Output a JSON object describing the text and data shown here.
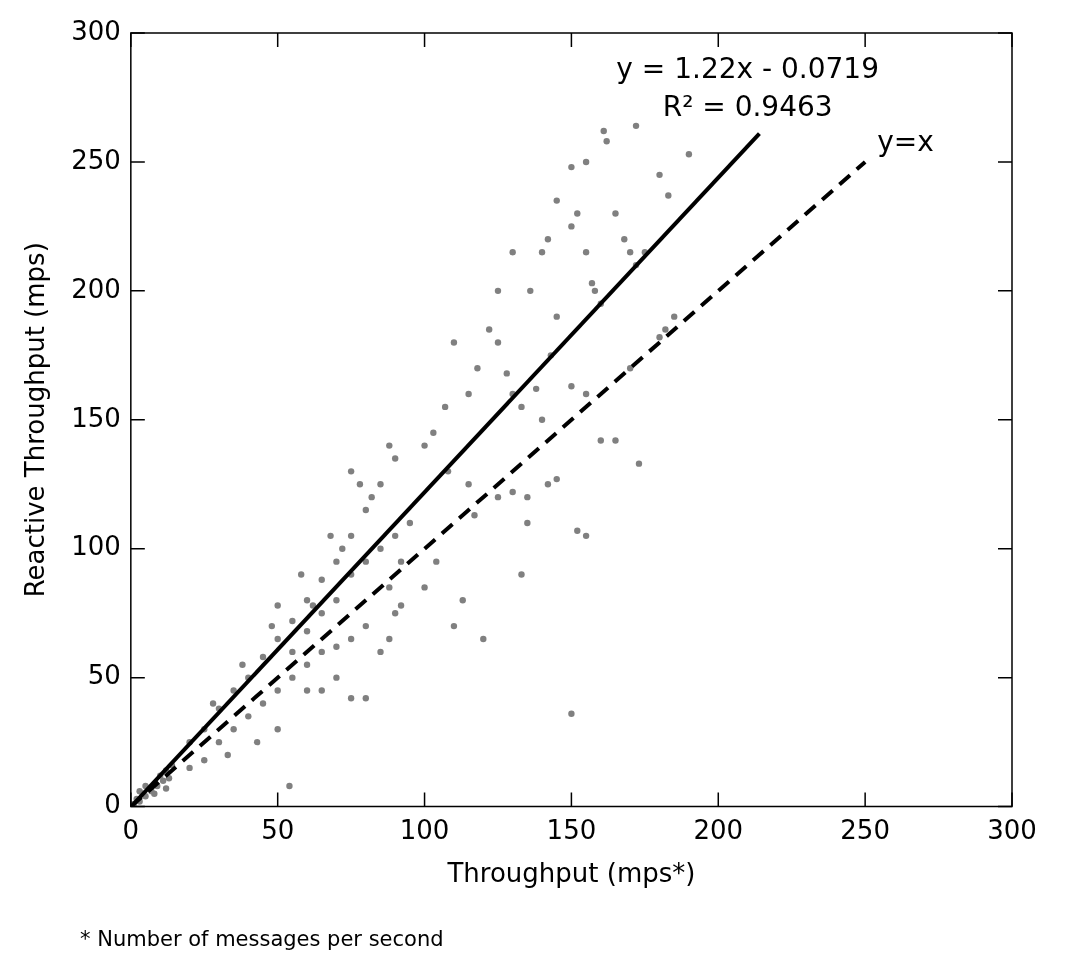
{
  "chart_data": {
    "type": "scatter",
    "xlabel": "Throughput (mps*)",
    "ylabel": "Reactive Throughput (mps)",
    "xlim": [
      0,
      300
    ],
    "ylim": [
      0,
      300
    ],
    "xticks": [
      0,
      50,
      100,
      150,
      200,
      250,
      300
    ],
    "yticks": [
      0,
      50,
      100,
      150,
      200,
      250,
      300
    ],
    "legend": false,
    "annotations": [
      "y = 1.22x - 0.0719",
      "R² = 0.9463",
      {
        "text": "y=x",
        "x": 250,
        "y": 250
      },
      "* Number of messages per second"
    ],
    "series": [
      {
        "marker": "circle",
        "color": "#808080",
        "x": [
          1,
          2,
          3,
          4,
          5,
          7,
          9,
          10,
          11,
          12,
          13,
          14,
          5,
          8,
          12,
          3,
          20,
          25,
          30,
          35,
          40,
          45,
          50,
          55,
          60,
          65,
          70,
          75,
          80,
          85,
          90,
          28,
          38,
          48,
          58,
          68,
          78,
          88,
          75,
          82,
          62,
          72,
          50,
          20,
          25,
          30,
          35,
          40,
          45,
          50,
          55,
          60,
          65,
          70,
          75,
          80,
          85,
          90,
          88,
          60,
          70,
          50,
          43,
          33,
          65,
          80,
          75,
          88,
          92,
          55,
          60,
          65,
          70,
          75,
          80,
          85,
          90,
          95,
          92,
          54,
          150,
          120,
          110,
          113,
          100,
          104,
          133,
          155,
          152,
          173,
          165,
          160,
          155,
          150,
          145,
          142,
          135,
          125,
          130,
          135,
          117,
          115,
          108,
          100,
          103,
          107,
          110,
          115,
          118,
          122,
          125,
          128,
          130,
          133,
          138,
          140,
          143,
          145,
          140,
          142,
          145,
          150,
          150,
          152,
          155,
          157,
          158,
          160,
          161,
          162,
          165,
          168,
          170,
          172,
          180,
          183,
          185,
          182,
          190,
          180,
          172,
          170,
          125,
          130,
          136,
          175,
          155
        ],
        "values": [
          1,
          3,
          2,
          5,
          4,
          6,
          8,
          12,
          10,
          14,
          11,
          16,
          8,
          5,
          7,
          6,
          25,
          30,
          38,
          45,
          50,
          58,
          65,
          72,
          80,
          88,
          95,
          105,
          115,
          125,
          135,
          40,
          55,
          70,
          90,
          105,
          125,
          140,
          130,
          120,
          78,
          100,
          78,
          15,
          18,
          25,
          30,
          35,
          40,
          45,
          50,
          55,
          60,
          62,
          65,
          70,
          60,
          75,
          85,
          45,
          50,
          30,
          25,
          20,
          45,
          42,
          42,
          65,
          78,
          60,
          68,
          75,
          80,
          90,
          95,
          100,
          105,
          110,
          95,
          8,
          36,
          65,
          70,
          80,
          85,
          95,
          90,
          105,
          107,
          133,
          142,
          142,
          160,
          163,
          127,
          125,
          120,
          120,
          122,
          110,
          113,
          125,
          130,
          140,
          145,
          155,
          180,
          160,
          170,
          185,
          180,
          168,
          160,
          155,
          162,
          150,
          175,
          190,
          215,
          220,
          235,
          248,
          225,
          230,
          215,
          203,
          200,
          195,
          262,
          258,
          230,
          220,
          215,
          210,
          245,
          237,
          190,
          185,
          253,
          182,
          264,
          170,
          200,
          215,
          200,
          215,
          250
        ]
      },
      {
        "type": "line",
        "marker": "none",
        "color": "#000000",
        "line_style": "solid",
        "x": [
          1,
          214
        ],
        "values": [
          1.1,
          261
        ]
      },
      {
        "type": "line",
        "marker": "none",
        "color": "#000000",
        "line_style": "dashed",
        "x": [
          0,
          250
        ],
        "values": [
          0,
          250
        ]
      }
    ]
  }
}
